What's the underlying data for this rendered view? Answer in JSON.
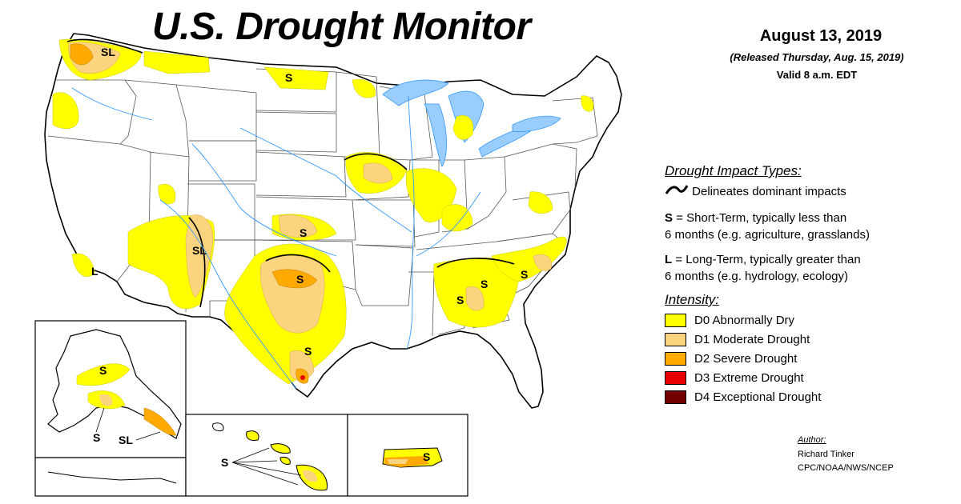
{
  "header": {
    "title": "U.S. Drought Monitor",
    "date": "August 13, 2019",
    "released": "(Released Thursday, Aug. 15, 2019)",
    "valid": "Valid 8 a.m. EDT"
  },
  "impact_types": {
    "heading": "Drought Impact Types:",
    "delineates": "Delineates dominant impacts",
    "short_term_code": "S",
    "short_term_text": "= Short-Term, typically less than",
    "short_term_text2": "6 months (e.g. agriculture, grasslands)",
    "long_term_code": "L",
    "long_term_text": "= Long-Term, typically greater than",
    "long_term_text2": "6 months (e.g. hydrology, ecology)"
  },
  "intensity": {
    "heading": "Intensity:",
    "levels": [
      {
        "label": "D0 Abnormally Dry",
        "color": "#ffff00"
      },
      {
        "label": "D1 Moderate Drought",
        "color": "#fcd37f"
      },
      {
        "label": "D2 Severe Drought",
        "color": "#ffaa00"
      },
      {
        "label": "D3 Extreme Drought",
        "color": "#e60000"
      },
      {
        "label": "D4 Exceptional Drought",
        "color": "#730000"
      }
    ]
  },
  "map_labels": {
    "pacific_nw": "SL",
    "california": "L",
    "four_corners": "SL",
    "kansas": "S",
    "north_dakota": "S",
    "red_river": "S",
    "south_texas": "S",
    "alabama": "S",
    "georgia": "S",
    "carolinas": "S",
    "alaska_interior": "S",
    "alaska_south": "S",
    "alaska_southeast": "SL",
    "hawaii": "S",
    "puerto_rico": "S"
  },
  "author": {
    "heading": "Author:",
    "name": "Richard Tinker",
    "org": "CPC/NOAA/NWS/NCEP"
  },
  "colors": {
    "water": "#99ccff",
    "river": "#3399ff",
    "border": "#000000",
    "state_line": "#555555"
  }
}
